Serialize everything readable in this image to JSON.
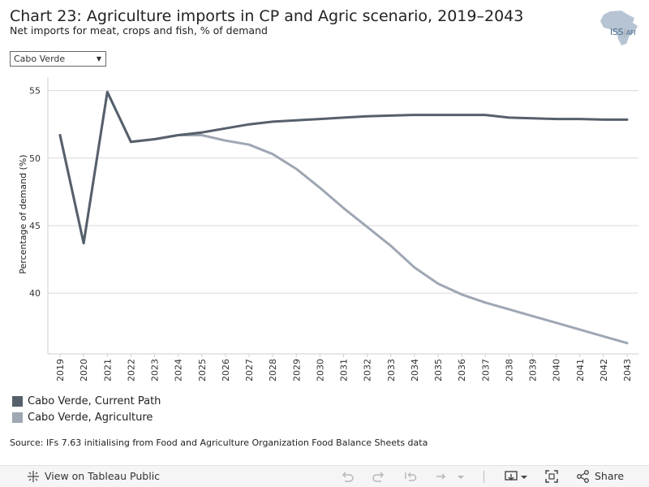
{
  "header": {
    "title": "Chart 23: Agriculture imports in CP and Agric scenario, 2019–2043",
    "subtitle": "Net imports for meat, crops and fish, % of demand"
  },
  "logo": {
    "text": "ISS",
    "suffix": "AFI"
  },
  "filter": {
    "selected": "Cabo Verde"
  },
  "chart_data": {
    "type": "line",
    "title": "Chart 23: Agriculture imports in CP and Agric scenario, 2019–2043",
    "subtitle": "Net imports for meat, crops and fish, % of demand",
    "xlabel": "",
    "ylabel": "Percentage of demand (%)",
    "ylim": [
      35.5,
      56
    ],
    "yticks": [
      40,
      45,
      50,
      55
    ],
    "grid": true,
    "legend_position": "bottom-left",
    "x": [
      2019,
      2020,
      2021,
      2022,
      2023,
      2024,
      2025,
      2026,
      2027,
      2028,
      2029,
      2030,
      2031,
      2032,
      2033,
      2034,
      2035,
      2036,
      2037,
      2038,
      2039,
      2040,
      2041,
      2042,
      2043
    ],
    "series": [
      {
        "name": "Cabo Verde, Current Path",
        "color": "#56606b",
        "values": [
          51.7,
          43.7,
          54.9,
          51.2,
          51.4,
          51.7,
          51.9,
          52.2,
          52.5,
          52.7,
          52.8,
          52.9,
          53.0,
          53.1,
          53.15,
          53.2,
          53.2,
          53.2,
          53.2,
          53.0,
          52.95,
          52.9,
          52.9,
          52.85,
          52.85
        ]
      },
      {
        "name": "Cabo Verde, Agriculture",
        "color": "#9ea7b3",
        "values": [
          51.7,
          43.7,
          54.9,
          51.2,
          51.4,
          51.7,
          51.7,
          51.3,
          51.0,
          50.3,
          49.2,
          47.8,
          46.3,
          44.9,
          43.5,
          41.9,
          40.7,
          39.9,
          39.3,
          38.8,
          38.3,
          37.8,
          37.3,
          36.8,
          36.3
        ]
      }
    ]
  },
  "source": "Source: IFs 7.63 initialising from Food and Agriculture Organization Food Balance Sheets data",
  "footer": {
    "view_label": "View on Tableau Public",
    "share_label": "Share"
  }
}
